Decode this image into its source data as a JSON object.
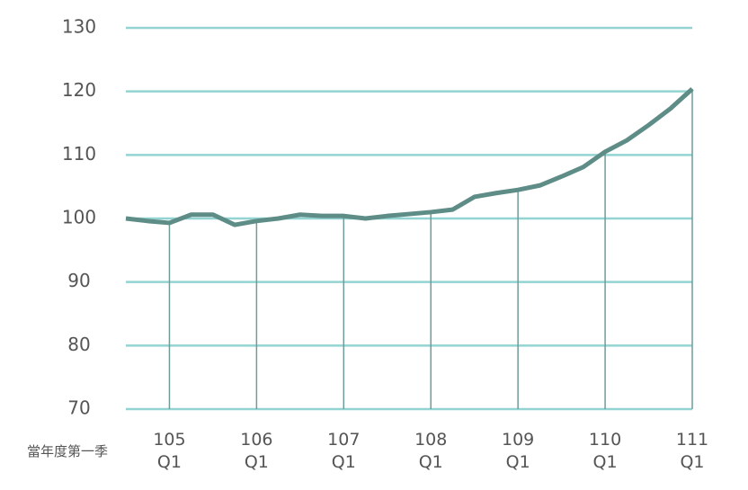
{
  "chart_data": {
    "type": "line",
    "x_label": "當年度第一季",
    "categories": [
      null,
      null,
      "105 Q1",
      null,
      null,
      null,
      "106 Q1",
      null,
      null,
      null,
      "107 Q1",
      null,
      null,
      null,
      "108 Q1",
      null,
      null,
      null,
      "109 Q1",
      null,
      null,
      null,
      "110 Q1",
      null,
      null,
      null,
      "111 Q1"
    ],
    "values": [
      100.0,
      99.6,
      99.3,
      100.6,
      100.6,
      99.0,
      99.6,
      100.0,
      100.6,
      100.4,
      100.4,
      100.0,
      100.4,
      100.7,
      101.0,
      101.4,
      103.4,
      104.0,
      104.5,
      105.2,
      106.6,
      108.1,
      110.5,
      112.3,
      114.7,
      117.3,
      120.4
    ],
    "color": "#5e8c87",
    "ylim": [
      70,
      130
    ],
    "yticks": [
      70,
      80,
      90,
      100,
      110,
      120,
      130
    ],
    "grid": true
  }
}
